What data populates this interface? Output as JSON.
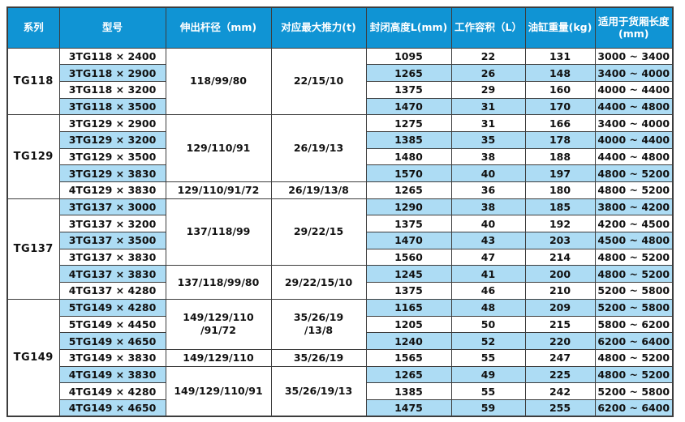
{
  "colors": {
    "header_bg": "#1094d4",
    "row_alt": "#addcf4",
    "border": "#3d3d3d",
    "header_text": "#ffffff",
    "text": "#111111"
  },
  "table": {
    "columns": [
      {
        "label": "系列"
      },
      {
        "label": "型号"
      },
      {
        "label": "伸出杆径（mm)"
      },
      {
        "label": "对应最大推力(t)"
      },
      {
        "label": "封闭高度L(mm)"
      },
      {
        "label": "工作容积（L）"
      },
      {
        "label": "油缸重量(kg)"
      },
      {
        "label": "适用于货厢长度 (mm)"
      }
    ],
    "groups": [
      {
        "series": "TG118",
        "spans": [
          {
            "rod": "118/99/80",
            "thrust": "22/15/10",
            "rows": 4
          }
        ],
        "rows": [
          {
            "model": "3TG118 × 2400",
            "closed_height": "1095",
            "volume": "22",
            "weight": "131",
            "box_length": "3000 ~ 3400"
          },
          {
            "model": "3TG118 × 2900",
            "closed_height": "1265",
            "volume": "26",
            "weight": "148",
            "box_length": "3400 ~ 4000"
          },
          {
            "model": "3TG118 × 3200",
            "closed_height": "1375",
            "volume": "29",
            "weight": "160",
            "box_length": "4000 ~ 4400"
          },
          {
            "model": "3TG118 × 3500",
            "closed_height": "1470",
            "volume": "31",
            "weight": "170",
            "box_length": "4400 ~ 4800"
          }
        ]
      },
      {
        "series": "TG129",
        "spans": [
          {
            "rod": "129/110/91",
            "thrust": "26/19/13",
            "rows": 4
          },
          {
            "rod": "129/110/91/72",
            "thrust": "26/19/13/8",
            "rows": 1
          }
        ],
        "rows": [
          {
            "model": "3TG129 × 2900",
            "closed_height": "1275",
            "volume": "31",
            "weight": "166",
            "box_length": "3400 ~ 4000"
          },
          {
            "model": "3TG129 × 3200",
            "closed_height": "1385",
            "volume": "35",
            "weight": "178",
            "box_length": "4000 ~ 4400"
          },
          {
            "model": "3TG129 × 3500",
            "closed_height": "1480",
            "volume": "38",
            "weight": "188",
            "box_length": "4400 ~ 4800"
          },
          {
            "model": "3TG129 × 3830",
            "closed_height": "1570",
            "volume": "40",
            "weight": "197",
            "box_length": "4800 ~ 5200"
          },
          {
            "model": "4TG129 × 3830",
            "closed_height": "1265",
            "volume": "36",
            "weight": "180",
            "box_length": "4800 ~ 5200"
          }
        ]
      },
      {
        "series": "TG137",
        "spans": [
          {
            "rod": "137/118/99",
            "thrust": "29/22/15",
            "rows": 4
          },
          {
            "rod": "137/118/99/80",
            "thrust": "29/22/15/10",
            "rows": 2
          }
        ],
        "rows": [
          {
            "model": "3TG137 × 3000",
            "closed_height": "1290",
            "volume": "38",
            "weight": "185",
            "box_length": "3800 ~ 4200"
          },
          {
            "model": "3TG137 × 3200",
            "closed_height": "1375",
            "volume": "40",
            "weight": "192",
            "box_length": "4200 ~ 4500"
          },
          {
            "model": "3TG137 × 3500",
            "closed_height": "1470",
            "volume": "43",
            "weight": "203",
            "box_length": "4500 ~ 4800"
          },
          {
            "model": "3TG137 × 3830",
            "closed_height": "1560",
            "volume": "47",
            "weight": "214",
            "box_length": "4800 ~ 5200"
          },
          {
            "model": "4TG137 × 3830",
            "closed_height": "1245",
            "volume": "41",
            "weight": "200",
            "box_length": "4800 ~ 5200"
          },
          {
            "model": "4TG137 × 4280",
            "closed_height": "1375",
            "volume": "46",
            "weight": "210",
            "box_length": "5200 ~ 5800"
          }
        ]
      },
      {
        "series": "TG149",
        "spans": [
          {
            "rod": "149/129/110\n/91/72",
            "thrust": "35/26/19\n/13/8",
            "rows": 3
          },
          {
            "rod": "149/129/110",
            "thrust": "35/26/19",
            "rows": 1
          },
          {
            "rod": "149/129/110/91",
            "thrust": "35/26/19/13",
            "rows": 3
          }
        ],
        "rows": [
          {
            "model": "5TG149 × 4280",
            "closed_height": "1165",
            "volume": "48",
            "weight": "209",
            "box_length": "5200 ~ 5800"
          },
          {
            "model": "5TG149 × 4450",
            "closed_height": "1205",
            "volume": "50",
            "weight": "215",
            "box_length": "5800 ~ 6200"
          },
          {
            "model": "5TG149 × 4650",
            "closed_height": "1240",
            "volume": "52",
            "weight": "220",
            "box_length": "6200 ~ 6400"
          },
          {
            "model": "3TG149 × 3830",
            "closed_height": "1565",
            "volume": "55",
            "weight": "247",
            "box_length": "4800 ~ 5200"
          },
          {
            "model": "4TG149 × 3830",
            "closed_height": "1265",
            "volume": "49",
            "weight": "225",
            "box_length": "4800 ~ 5200"
          },
          {
            "model": "4TG149 × 4280",
            "closed_height": "1385",
            "volume": "55",
            "weight": "242",
            "box_length": "5200 ~ 5800"
          },
          {
            "model": "4TG149 × 4650",
            "closed_height": "1475",
            "volume": "59",
            "weight": "255",
            "box_length": "6200 ~ 6400"
          }
        ]
      }
    ]
  }
}
